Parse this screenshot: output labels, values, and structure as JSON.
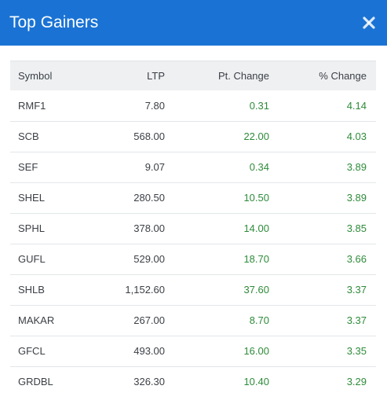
{
  "modal": {
    "title": "Top Gainers",
    "close_icon": "close-icon"
  },
  "colors": {
    "header_bg": "#1a73d4",
    "positive": "#2e8b3a",
    "table_header_bg": "#eef0f2"
  },
  "table": {
    "headers": {
      "symbol": "Symbol",
      "ltp": "LTP",
      "pt_change": "Pt. Change",
      "pct_change": "% Change"
    },
    "rows": [
      {
        "symbol": "RMF1",
        "ltp": "7.80",
        "pt_change": "0.31",
        "pct_change": "4.14"
      },
      {
        "symbol": "SCB",
        "ltp": "568.00",
        "pt_change": "22.00",
        "pct_change": "4.03"
      },
      {
        "symbol": "SEF",
        "ltp": "9.07",
        "pt_change": "0.34",
        "pct_change": "3.89"
      },
      {
        "symbol": "SHEL",
        "ltp": "280.50",
        "pt_change": "10.50",
        "pct_change": "3.89"
      },
      {
        "symbol": "SPHL",
        "ltp": "378.00",
        "pt_change": "14.00",
        "pct_change": "3.85"
      },
      {
        "symbol": "GUFL",
        "ltp": "529.00",
        "pt_change": "18.70",
        "pct_change": "3.66"
      },
      {
        "symbol": "SHLB",
        "ltp": "1,152.60",
        "pt_change": "37.60",
        "pct_change": "3.37"
      },
      {
        "symbol": "MAKAR",
        "ltp": "267.00",
        "pt_change": "8.70",
        "pct_change": "3.37"
      },
      {
        "symbol": "GFCL",
        "ltp": "493.00",
        "pt_change": "16.00",
        "pct_change": "3.35"
      },
      {
        "symbol": "GRDBL",
        "ltp": "326.30",
        "pt_change": "10.40",
        "pct_change": "3.29"
      }
    ]
  }
}
